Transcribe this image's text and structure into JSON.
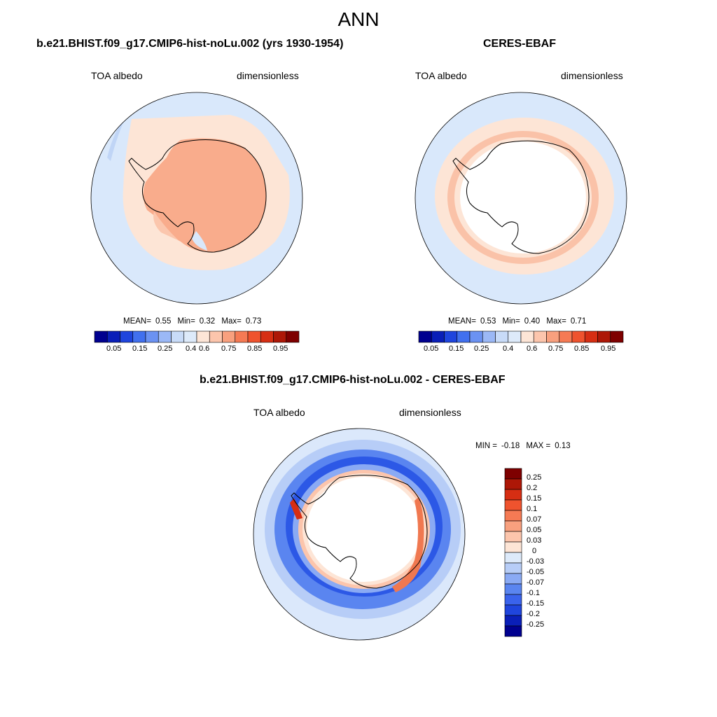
{
  "main_title": "ANN",
  "colors": {
    "abs_scale": [
      "#00008f",
      "#0a1fb8",
      "#1f45dd",
      "#4170ee",
      "#6b92f2",
      "#9bb8f6",
      "#c8dbf8",
      "#ddeafa",
      "#fde5d6",
      "#fcc5ac",
      "#f8a07e",
      "#f57a54",
      "#ef532e",
      "#d62e13",
      "#ad1707",
      "#7e0000"
    ],
    "diff_scale": [
      "#00008f",
      "#0a1fb8",
      "#1f45dd",
      "#3a63ec",
      "#5a85f0",
      "#8aaaf4",
      "#b7cdf7",
      "#ddeafa",
      "#fde5d6",
      "#fcc5ac",
      "#f8a07e",
      "#f57a54",
      "#ef532e",
      "#d62e13",
      "#ad1707",
      "#7e0000"
    ]
  },
  "panel1": {
    "title": "b.e21.BHIST.f09_g17.CMIP6-hist-noLu.002 (yrs 1930-1954)",
    "left_label": "TOA albedo",
    "right_label": "dimensionless",
    "mean_label": "MEAN=",
    "mean": "0.55",
    "min_label": "Min=",
    "min": "0.32",
    "max_label": "Max=",
    "max": "0.73",
    "ticks": [
      "0.05",
      "0.15",
      "0.25",
      "0.4",
      "0.6",
      "0.75",
      "0.85",
      "0.95"
    ]
  },
  "panel2": {
    "title": "CERES-EBAF",
    "left_label": "TOA albedo",
    "right_label": "dimensionless",
    "mean_label": "MEAN=",
    "mean": "0.53",
    "min_label": "Min=",
    "min": "0.40",
    "max_label": "Max=",
    "max": "0.71",
    "ticks": [
      "0.05",
      "0.15",
      "0.25",
      "0.4",
      "0.6",
      "0.75",
      "0.85",
      "0.95"
    ]
  },
  "panel3": {
    "title": "b.e21.BHIST.f09_g17.CMIP6-hist-noLu.002 - CERES-EBAF",
    "left_label": "TOA albedo",
    "right_label": "dimensionless",
    "min_label": "MIN =",
    "min": "-0.18",
    "max_label": "MAX =",
    "max": "0.13",
    "ticks": [
      "0.25",
      "0.2",
      "0.15",
      "0.1",
      "0.07",
      "0.05",
      "0.03",
      "0",
      "-0.03",
      "-0.05",
      "-0.07",
      "-0.1",
      "-0.15",
      "-0.2",
      "-0.25"
    ]
  }
}
